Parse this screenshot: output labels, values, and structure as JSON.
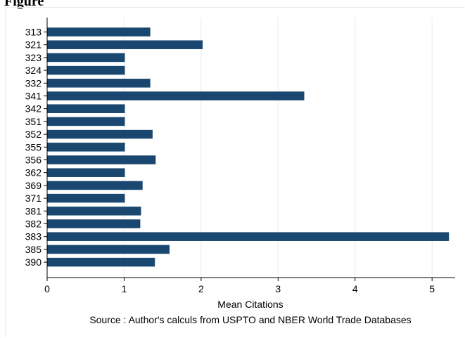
{
  "page": {
    "top_label": "Figure"
  },
  "chart_data": {
    "type": "bar",
    "orientation": "horizontal",
    "categories": [
      "313",
      "321",
      "323",
      "324",
      "332",
      "341",
      "342",
      "351",
      "352",
      "355",
      "356",
      "362",
      "369",
      "371",
      "381",
      "382",
      "383",
      "385",
      "390"
    ],
    "values": [
      1.34,
      2.02,
      1.01,
      1.01,
      1.34,
      3.34,
      1.01,
      1.01,
      1.37,
      1.01,
      1.41,
      1.01,
      1.24,
      1.01,
      1.22,
      1.21,
      5.22,
      1.59,
      1.4
    ],
    "title": "",
    "xlabel": "Mean Citations",
    "ylabel": "",
    "note": "Source : Author's calculs from USPTO and NBER World Trade Databases",
    "xlim": [
      0,
      5.3
    ],
    "xticks": [
      0,
      1,
      2,
      3,
      4,
      5
    ],
    "grid": true,
    "bar_color": "#1a476f",
    "grid_color": "#eaeaea"
  }
}
